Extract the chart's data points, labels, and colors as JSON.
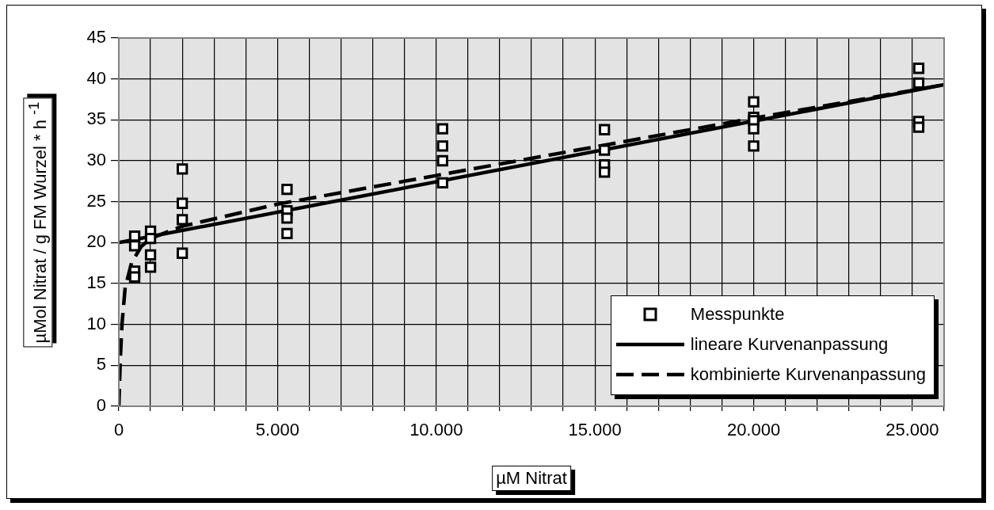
{
  "chart_data": {
    "type": "scatter",
    "xlabel": "µM Nitrat",
    "ylabel": "µMol Nitrat / g FM Wurzel * h $^{-1}$",
    "xlim": [
      0,
      26000
    ],
    "ylim": [
      0,
      45
    ],
    "xticks": [
      0,
      {
        "value": 1000,
        "label": null
      },
      {
        "value": 2000,
        "label": null
      },
      {
        "value": 3000,
        "label": null
      },
      {
        "value": 4000,
        "label": null
      },
      {
        "value": 5000,
        "label": "5.000"
      },
      {
        "value": 6000,
        "label": null
      },
      {
        "value": 7000,
        "label": null
      },
      {
        "value": 8000,
        "label": null
      },
      {
        "value": 9000,
        "label": null
      },
      {
        "value": 10000,
        "label": "10.000"
      },
      {
        "value": 11000,
        "label": null
      },
      {
        "value": 12000,
        "label": null
      },
      {
        "value": 13000,
        "label": null
      },
      {
        "value": 14000,
        "label": null
      },
      {
        "value": 15000,
        "label": "15.000"
      },
      {
        "value": 16000,
        "label": null
      },
      {
        "value": 17000,
        "label": null
      },
      {
        "value": 18000,
        "label": null
      },
      {
        "value": 19000,
        "label": null
      },
      {
        "value": 20000,
        "label": "20.000"
      },
      {
        "value": 21000,
        "label": null
      },
      {
        "value": 22000,
        "label": null
      },
      {
        "value": 23000,
        "label": null
      },
      {
        "value": 24000,
        "label": null
      },
      {
        "value": 25000,
        "label": "25.000"
      },
      {
        "value": 26000,
        "label": null
      }
    ],
    "yticks": [
      0,
      5,
      10,
      15,
      20,
      25,
      30,
      35,
      40,
      45
    ],
    "grid": true,
    "legend": "bottom right",
    "marker": "square",
    "series": [
      {
        "name": "Messpunkte",
        "type": "scatter",
        "color": "#000000",
        "x": [
          500,
          500,
          500,
          500,
          1000,
          1000,
          1000,
          1000,
          2000,
          2000,
          2000,
          2000,
          5300,
          5300,
          5300,
          5300,
          10200,
          10200,
          10200,
          10200,
          15300,
          15300,
          15300,
          15300,
          20000,
          20000,
          20000,
          20000,
          20000,
          25200,
          25200,
          25200,
          25200
        ],
        "values": [
          20.8,
          19.6,
          16.5,
          15.8,
          21.4,
          20.5,
          18.5,
          17.0,
          29.0,
          24.8,
          22.8,
          18.7,
          26.5,
          23.9,
          23.0,
          21.1,
          33.9,
          31.8,
          30.0,
          27.3,
          33.8,
          31.3,
          29.5,
          28.6,
          37.2,
          35.3,
          34.9,
          33.9,
          31.8,
          41.3,
          39.5,
          34.8,
          34.1
        ]
      },
      {
        "name": "lineare Kurvenanpassung",
        "type": "line",
        "color": "#000000",
        "line_style": "solid",
        "marker": "none",
        "x": [
          0,
          26000
        ],
        "values": [
          20.0,
          39.3
        ]
      },
      {
        "name": "kombinierte Kurvenanpassung",
        "type": "line",
        "color": "#000000",
        "line_style": "dashed",
        "marker": "none",
        "x": [
          0,
          25,
          50,
          100,
          200,
          400,
          700,
          1000,
          2000,
          5000,
          10000,
          15000,
          20000,
          25000,
          26000
        ],
        "values": [
          0,
          3,
          6,
          10,
          14.5,
          17.5,
          19.5,
          20.5,
          22,
          24.7,
          28.2,
          31.7,
          35.2,
          38.6,
          39.3
        ]
      }
    ]
  }
}
